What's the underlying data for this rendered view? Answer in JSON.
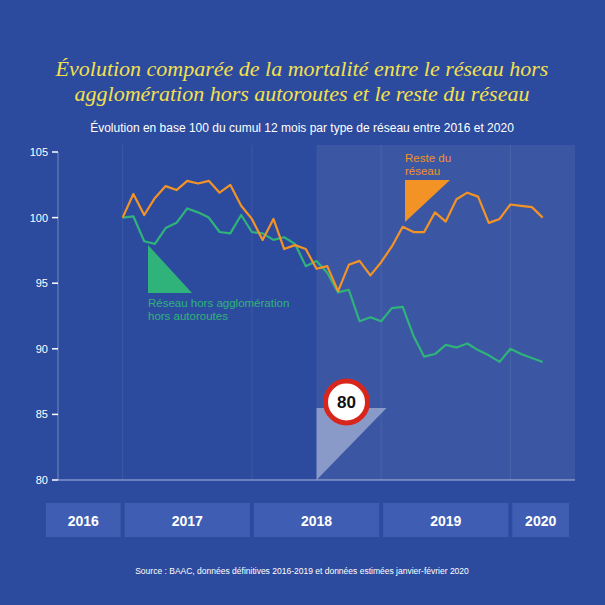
{
  "chart_data": {
    "type": "line",
    "title": "Évolution comparée de la mortalité entre le réseau hors agglomération hors autoroutes et le reste du réseau",
    "subtitle": "Évolution en base 100 du cumul 12 mois par type de réseau entre 2016 et 2020",
    "source": "Source : BAAC, données définitives 2016-2019 et données estimées janvier-février 2020",
    "x": [
      2017,
      2017.083,
      2017.167,
      2017.25,
      2017.333,
      2017.417,
      2017.5,
      2017.583,
      2017.667,
      2017.75,
      2017.833,
      2017.917,
      2018,
      2018.083,
      2018.167,
      2018.25,
      2018.333,
      2018.417,
      2018.5,
      2018.583,
      2018.667,
      2018.75,
      2018.833,
      2018.917,
      2019,
      2019.083,
      2019.167,
      2019.25,
      2019.333,
      2019.417,
      2019.5,
      2019.583,
      2019.667,
      2019.75,
      2019.833,
      2019.917,
      2020,
      2020.083,
      2020.167,
      2020.25
    ],
    "series": [
      {
        "name": "Réseau hors agglomération hors autoroutes",
        "color": "#2fb37a",
        "values": [
          100,
          100.1,
          98.2,
          98.0,
          99.2,
          99.6,
          100.7,
          100.4,
          100.0,
          98.9,
          98.8,
          100.2,
          98.9,
          98.8,
          98.3,
          98.5,
          98.0,
          96.3,
          96.7,
          95.8,
          94.3,
          94.5,
          92.1,
          92.4,
          92.1,
          93.1,
          93.2,
          91.0,
          89.4,
          89.6,
          90.3,
          90.1,
          90.4,
          89.9,
          89.5,
          89.0,
          90.0,
          89.6,
          89.3,
          89.0
        ]
      },
      {
        "name": "Reste du réseau",
        "color": "#f39325",
        "values": [
          100,
          101.8,
          100.2,
          101.5,
          102.4,
          102.1,
          102.8,
          102.6,
          102.8,
          101.9,
          102.5,
          100.9,
          99.9,
          98.3,
          99.9,
          97.6,
          97.9,
          97.6,
          96.1,
          96.3,
          94.4,
          96.4,
          96.7,
          95.6,
          96.6,
          97.8,
          99.3,
          98.9,
          98.9,
          100.4,
          99.7,
          101.4,
          101.9,
          101.6,
          99.6,
          99.9,
          101,
          100.9,
          100.8,
          100
        ]
      }
    ],
    "xlim": [
      2016.5,
      2020.5
    ],
    "xticks": [
      {
        "value": 2016.5,
        "label": "2016"
      },
      {
        "value": 2017.5,
        "label": "2017"
      },
      {
        "value": 2018.5,
        "label": "2018"
      },
      {
        "value": 2019.5,
        "label": "2019"
      },
      {
        "value": 2020.5,
        "label": "2020"
      }
    ],
    "ylim": [
      80,
      105
    ],
    "yticks": [
      80,
      85,
      90,
      95,
      100,
      105
    ],
    "annotations": [
      {
        "text": "80",
        "x": 2018.5
      }
    ]
  }
}
